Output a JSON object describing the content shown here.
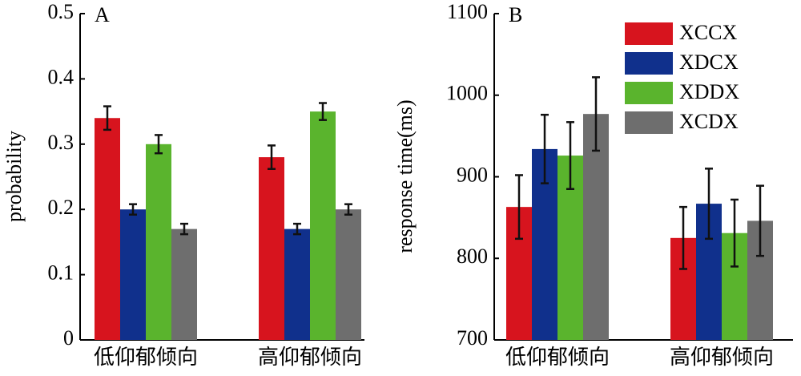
{
  "chart_data": [
    {
      "type": "bar",
      "panel_label": "A",
      "ylabel": "probability",
      "categories": [
        "低仰郁倾向",
        "高仰郁倾向"
      ],
      "series": [
        {
          "color": "#d7141e",
          "values": [
            0.34,
            0.28
          ],
          "errors": [
            0.018,
            0.018
          ]
        },
        {
          "color": "#10308c",
          "values": [
            0.2,
            0.17
          ],
          "errors": [
            0.008,
            0.008
          ]
        },
        {
          "color": "#5ab42d",
          "values": [
            0.3,
            0.35
          ],
          "errors": [
            0.014,
            0.013
          ]
        },
        {
          "color": "#6e6e6e",
          "values": [
            0.17,
            0.2
          ],
          "errors": [
            0.008,
            0.008
          ]
        }
      ],
      "ylim": [
        0,
        0.5
      ],
      "yticks": [
        0,
        0.1,
        0.2,
        0.3,
        0.4,
        0.5
      ]
    },
    {
      "type": "bar",
      "panel_label": "B",
      "ylabel": "response time(ms)",
      "categories": [
        "低仰郁倾向",
        "高仰郁倾向"
      ],
      "series": [
        {
          "name": "XCCX",
          "color": "#d7141e",
          "values": [
            863,
            825
          ],
          "errors": [
            39,
            38
          ]
        },
        {
          "name": "XDCX",
          "color": "#10308c",
          "values": [
            934,
            867
          ],
          "errors": [
            42,
            43
          ]
        },
        {
          "name": "XDDX",
          "color": "#5ab42d",
          "values": [
            926,
            831
          ],
          "errors": [
            41,
            41
          ]
        },
        {
          "name": "XCDX",
          "color": "#6e6e6e",
          "values": [
            977,
            846
          ],
          "errors": [
            45,
            43
          ]
        }
      ],
      "ylim": [
        700,
        1100
      ],
      "yticks": [
        700,
        800,
        900,
        1000,
        1100
      ],
      "legend": "upper right"
    }
  ]
}
